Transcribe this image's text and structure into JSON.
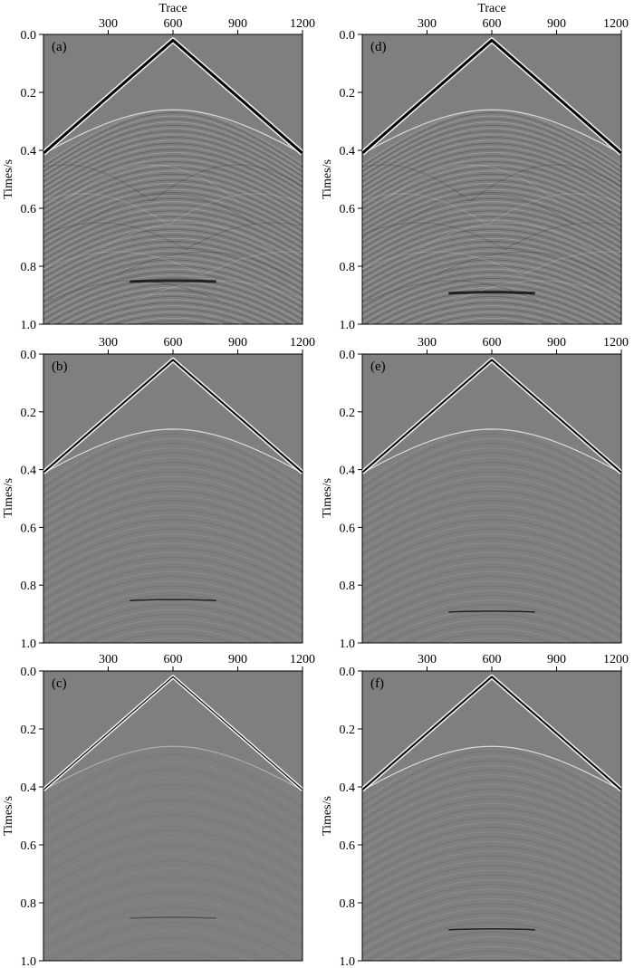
{
  "chart_data": [
    {
      "type": "heatmap",
      "panel_label": "(a)",
      "xlabel": "Trace",
      "ylabel": "Times/s",
      "x_ticks": [
        300,
        600,
        900,
        1200
      ],
      "y_ticks": [
        0.0,
        0.2,
        0.4,
        0.6,
        0.8,
        1.0
      ],
      "xlim": [
        0,
        1200
      ],
      "ylim": [
        1.0,
        0.0
      ],
      "events": {
        "apex_trace": 600,
        "direct_t0": 0.02,
        "direct_t_edge": 0.41,
        "reflection_t0": 0.26,
        "deep_event_t0": 0.85
      },
      "noise_level": "high"
    },
    {
      "type": "heatmap",
      "panel_label": "(b)",
      "xlabel": "",
      "ylabel": "Times/s",
      "x_ticks": [
        300,
        600,
        900,
        1200
      ],
      "y_ticks": [
        0.0,
        0.2,
        0.4,
        0.6,
        0.8,
        1.0
      ],
      "xlim": [
        0,
        1200
      ],
      "ylim": [
        1.0,
        0.0
      ],
      "events": {
        "apex_trace": 600,
        "direct_t0": 0.02,
        "direct_t_edge": 0.41,
        "reflection_t0": 0.26,
        "deep_event_t0": 0.85
      },
      "noise_level": "low"
    },
    {
      "type": "heatmap",
      "panel_label": "(c)",
      "xlabel": "",
      "ylabel": "Times/s",
      "x_ticks": [
        300,
        600,
        900,
        1200
      ],
      "y_ticks": [
        0.0,
        0.2,
        0.4,
        0.6,
        0.8,
        1.0
      ],
      "xlim": [
        0,
        1200
      ],
      "ylim": [
        1.0,
        0.0
      ],
      "events": {
        "apex_trace": 600,
        "direct_t0": 0.02,
        "direct_t_edge": 0.41,
        "reflection_t0": 0.26,
        "deep_event_t0": 0.85
      },
      "noise_level": "very-low"
    },
    {
      "type": "heatmap",
      "panel_label": "(d)",
      "xlabel": "Trace",
      "ylabel": "Times/s",
      "x_ticks": [
        300,
        600,
        900,
        1200
      ],
      "y_ticks": [
        0.0,
        0.2,
        0.4,
        0.6,
        0.8,
        1.0
      ],
      "xlim": [
        0,
        1200
      ],
      "ylim": [
        1.0,
        0.0
      ],
      "events": {
        "apex_trace": 600,
        "direct_t0": 0.02,
        "direct_t_edge": 0.41,
        "reflection_t0": 0.26,
        "deep_event_t0": 0.89
      },
      "noise_level": "high"
    },
    {
      "type": "heatmap",
      "panel_label": "(e)",
      "xlabel": "",
      "ylabel": "Times/s",
      "x_ticks": [
        300,
        600,
        900,
        1200
      ],
      "y_ticks": [
        0.0,
        0.2,
        0.4,
        0.6,
        0.8,
        1.0
      ],
      "xlim": [
        0,
        1200
      ],
      "ylim": [
        1.0,
        0.0
      ],
      "events": {
        "apex_trace": 600,
        "direct_t0": 0.02,
        "direct_t_edge": 0.41,
        "reflection_t0": 0.26,
        "deep_event_t0": 0.89
      },
      "noise_level": "low"
    },
    {
      "type": "heatmap",
      "panel_label": "(f)",
      "xlabel": "",
      "ylabel": "Times/s",
      "x_ticks": [
        300,
        600,
        900,
        1200
      ],
      "y_ticks": [
        0.0,
        0.2,
        0.4,
        0.6,
        0.8,
        1.0
      ],
      "xlim": [
        0,
        1200
      ],
      "ylim": [
        1.0,
        0.0
      ],
      "events": {
        "apex_trace": 600,
        "direct_t0": 0.02,
        "direct_t_edge": 0.41,
        "reflection_t0": 0.26,
        "deep_event_t0": 0.89
      },
      "noise_level": "low"
    }
  ],
  "colors": {
    "background_gray": "#7f7f7f",
    "peak": "#ffffff",
    "trough": "#000000"
  }
}
